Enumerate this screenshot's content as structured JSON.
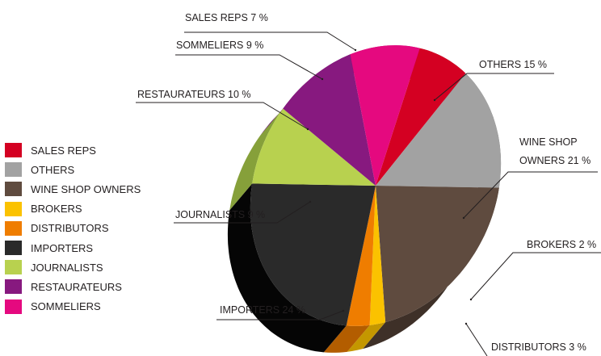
{
  "chart_data": {
    "type": "pie",
    "title": "",
    "slices": [
      {
        "label": "SALES REPS",
        "value": 7,
        "callout": "SALES REPS 7 %",
        "color": "#d40022",
        "side": "#8f0017"
      },
      {
        "label": "OTHERS",
        "value": 15,
        "callout": "OTHERS 15 %",
        "color": "#a2a2a2",
        "side": "#6e6e6e"
      },
      {
        "label": "WINE SHOP OWNERS",
        "value": 21,
        "callout": [
          "WINE SHOP",
          "OWNERS 21 %"
        ],
        "color": "#5f4b3f",
        "side": "#3e3028"
      },
      {
        "label": "BROKERS",
        "value": 2,
        "callout": "BROKERS 2 %",
        "color": "#fbc200",
        "side": "#c49700"
      },
      {
        "label": "DISTRIBUTORS",
        "value": 3,
        "callout": "DISTRIBUTORS 3 %",
        "color": "#ef7d00",
        "side": "#b35d00"
      },
      {
        "label": "IMPORTERS",
        "value": 24,
        "callout": "IMPORTERS 24 %",
        "color": "#2a2a2a",
        "side": "#050505"
      },
      {
        "label": "JOURNALISTS",
        "value": 9,
        "callout": "JOURNALISTS 9 %",
        "color": "#b8d14f",
        "side": "#86a03a"
      },
      {
        "label": "RESTAURATEURS",
        "value": 10,
        "callout": "RESTAURATEURS 10 %",
        "color": "#87197f",
        "side": "#5c0f57"
      },
      {
        "label": "SOMMELIERS",
        "value": 9,
        "callout": "SOMMELIERS 9 %",
        "color": "#e5097f",
        "side": "#a4055a"
      }
    ],
    "legend": {
      "position": "left",
      "items": [
        "SALES REPS",
        "OTHERS",
        "WINE SHOP OWNERS",
        "BROKERS",
        "DISTRIBUTORS",
        "IMPORTERS",
        "JOURNALISTS",
        "RESTAURATEURS",
        "SOMMELIERS"
      ]
    }
  }
}
